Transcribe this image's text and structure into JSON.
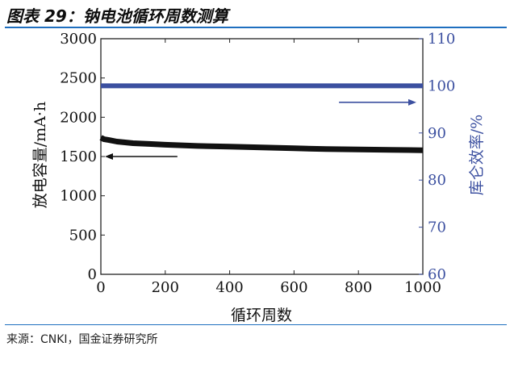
{
  "title": "图表 29：钠电池循环周数测算",
  "source": "来源：CNKI，国金证券研究所",
  "chart_data": {
    "type": "line",
    "xlabel": "循环周数",
    "ylabel_left": "放电容量/mA·h",
    "ylabel_right": "库仑效率/%",
    "xlim": [
      0,
      1000
    ],
    "ylim_left": [
      0,
      3000
    ],
    "ylim_right": [
      60,
      110
    ],
    "x_ticks": [
      0,
      200,
      400,
      600,
      800,
      1000
    ],
    "y_ticks_left": [
      0,
      500,
      1000,
      1500,
      2000,
      2500,
      3000
    ],
    "y_ticks_right": [
      60,
      70,
      80,
      90,
      100,
      110
    ],
    "series": [
      {
        "axis": "left",
        "color": "#111111",
        "x": [
          0,
          10,
          25,
          50,
          100,
          150,
          200,
          300,
          400,
          500,
          600,
          700,
          800,
          900,
          1000
        ],
        "values": [
          1740,
          1720,
          1710,
          1690,
          1670,
          1660,
          1650,
          1635,
          1625,
          1615,
          1605,
          1595,
          1590,
          1585,
          1580
        ]
      },
      {
        "axis": "right",
        "color": "#3c50a0",
        "x": [
          0,
          100,
          200,
          300,
          400,
          500,
          600,
          700,
          800,
          900,
          1000
        ],
        "values": [
          100,
          100,
          100,
          100,
          100,
          100,
          100,
          100,
          100,
          100,
          100
        ]
      }
    ],
    "annotations": [
      {
        "type": "arrow",
        "direction": "left",
        "axis": "left",
        "x": 150,
        "y": 1500,
        "color": "#111111"
      },
      {
        "type": "arrow",
        "direction": "right",
        "axis": "right",
        "x": 860,
        "y": 96.5,
        "color": "#3c50a0"
      }
    ]
  }
}
